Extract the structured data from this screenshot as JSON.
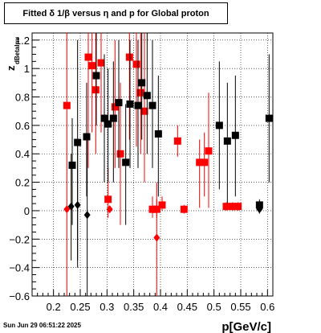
{
  "chart_data": {
    "type": "scatter",
    "title": "Fitted δ 1/β versus η and p for Global proton",
    "xlabel": "p[GeV/c]",
    "ylabel": "z",
    "ylabel_sub": "dBetaInv",
    "xlim": [
      0.16,
      0.61
    ],
    "ylim": [
      -0.6,
      1.25
    ],
    "xticks": [
      0.2,
      0.25,
      0.3,
      0.35,
      0.4,
      0.45,
      0.5,
      0.55,
      0.6
    ],
    "xtick_labels": [
      "0.2",
      "0.25",
      "0.3",
      "0.35",
      "0.4",
      "0.45",
      "0.5",
      "0.55",
      "0.6"
    ],
    "yticks": [
      -0.6,
      -0.4,
      -0.2,
      0,
      0.2,
      0.4,
      0.6,
      0.8,
      1,
      1.2
    ],
    "ytick_labels": [
      "−0.6",
      "−0.4",
      "−0.2",
      "0",
      "0.2",
      "0.4",
      "0.6",
      "0.8",
      "1",
      "1.2"
    ],
    "grid": true,
    "series": [
      {
        "color": "#ff0000",
        "marker": "square",
        "points": [
          {
            "x": 0.225,
            "y": 0.74,
            "lo": -0.6,
            "hi": 1.25
          },
          {
            "x": 0.265,
            "y": 1.08,
            "lo": 0.3,
            "hi": 1.25
          },
          {
            "x": 0.272,
            "y": 1.02,
            "lo": 0.55,
            "hi": 1.25
          },
          {
            "x": 0.279,
            "y": 0.85,
            "lo": 0.4,
            "hi": 1.25
          },
          {
            "x": 0.289,
            "y": 1.04,
            "lo": 0.55,
            "hi": 1.25
          },
          {
            "x": 0.302,
            "y": 0.08,
            "lo": -0.05,
            "hi": 0.3
          },
          {
            "x": 0.315,
            "y": 0.73,
            "lo": 0.3,
            "hi": 1.2
          },
          {
            "x": 0.325,
            "y": 0.4,
            "lo": -0.1,
            "hi": 0.9
          },
          {
            "x": 0.342,
            "y": 1.08,
            "lo": 0.5,
            "hi": 1.25
          },
          {
            "x": 0.355,
            "y": 1.03,
            "lo": 0.45,
            "hi": 1.25
          },
          {
            "x": 0.363,
            "y": 0.83,
            "lo": 0.4,
            "hi": 1.25
          },
          {
            "x": 0.37,
            "y": 0.7,
            "lo": 0.2,
            "hi": 1.25
          },
          {
            "x": 0.385,
            "y": 0.01,
            "lo": -0.05,
            "hi": 0.1
          },
          {
            "x": 0.393,
            "y": 0.01,
            "lo": -0.05,
            "hi": 0.08
          },
          {
            "x": 0.403,
            "y": 0.04,
            "lo": 0.0,
            "hi": 0.1
          },
          {
            "x": 0.432,
            "y": 0.49,
            "lo": 0.38,
            "hi": 0.6
          },
          {
            "x": 0.444,
            "y": 0.01,
            "lo": -0.02,
            "hi": 0.04
          },
          {
            "x": 0.473,
            "y": 0.34,
            "lo": 0.02,
            "hi": 0.5
          },
          {
            "x": 0.482,
            "y": 0.34,
            "lo": 0.1,
            "hi": 0.55
          },
          {
            "x": 0.49,
            "y": 0.42,
            "lo": 0.02,
            "hi": 0.83
          },
          {
            "x": 0.523,
            "y": 0.03,
            "lo": 0.0,
            "hi": 0.06
          },
          {
            "x": 0.535,
            "y": 0.03,
            "lo": 0.0,
            "hi": 0.06
          },
          {
            "x": 0.545,
            "y": 0.03,
            "lo": 0.0,
            "hi": 0.06
          }
        ]
      },
      {
        "color": "#ff0000",
        "marker": "diamond",
        "points": [
          {
            "x": 0.225,
            "y": 0.01
          },
          {
            "x": 0.305,
            "y": 0.01
          },
          {
            "x": 0.393,
            "y": -0.19,
            "lo": -0.6,
            "hi": 0.2
          }
        ]
      },
      {
        "color": "#000000",
        "marker": "square",
        "points": [
          {
            "x": 0.235,
            "y": 0.32,
            "lo": -0.1,
            "hi": 0.65
          },
          {
            "x": 0.245,
            "y": 0.48,
            "lo": -0.35,
            "hi": 1.2
          },
          {
            "x": 0.262,
            "y": 0.52,
            "lo": 0.1,
            "hi": 0.9
          },
          {
            "x": 0.28,
            "y": 0.95,
            "lo": 0.6,
            "hi": 1.25
          },
          {
            "x": 0.295,
            "y": 0.65,
            "lo": 0.2,
            "hi": 1.1
          },
          {
            "x": 0.302,
            "y": 0.61,
            "lo": 0.2,
            "hi": 1.0
          },
          {
            "x": 0.312,
            "y": 0.65,
            "lo": 0.2,
            "hi": 1.05
          },
          {
            "x": 0.322,
            "y": 0.76,
            "lo": 0.3,
            "hi": 1.2
          },
          {
            "x": 0.335,
            "y": 0.34,
            "lo": -0.1,
            "hi": 0.75
          },
          {
            "x": 0.343,
            "y": 0.75,
            "lo": 0.3,
            "hi": 1.2
          },
          {
            "x": 0.358,
            "y": 0.74,
            "lo": 0.3,
            "hi": 1.2
          },
          {
            "x": 0.365,
            "y": 0.9,
            "lo": 0.5,
            "hi": 1.25
          },
          {
            "x": 0.375,
            "y": 0.81,
            "lo": 0.4,
            "hi": 1.25
          },
          {
            "x": 0.385,
            "y": 0.74,
            "lo": 0.3,
            "hi": 1.2
          },
          {
            "x": 0.396,
            "y": 0.54,
            "lo": 0.1,
            "hi": 0.95
          },
          {
            "x": 0.51,
            "y": 0.6,
            "lo": 0.15,
            "hi": 1.05
          },
          {
            "x": 0.525,
            "y": 0.49,
            "lo": 0.05,
            "hi": 0.9
          },
          {
            "x": 0.54,
            "y": 0.53,
            "lo": 0.1,
            "hi": 0.95
          },
          {
            "x": 0.585,
            "y": 0.04,
            "lo": -0.02,
            "hi": 0.08
          },
          {
            "x": 0.603,
            "y": 0.65,
            "lo": 0.2,
            "hi": 1.1
          }
        ]
      },
      {
        "color": "#000000",
        "marker": "diamond",
        "points": [
          {
            "x": 0.233,
            "y": 0.03,
            "lo": -0.35,
            "hi": 0.4
          },
          {
            "x": 0.245,
            "y": 0.04,
            "lo": -0.4,
            "hi": 0.5
          },
          {
            "x": 0.263,
            "y": -0.03,
            "lo": -0.6,
            "hi": 0.5
          },
          {
            "x": 0.585,
            "y": 0.01
          }
        ]
      }
    ],
    "colors": {
      "red": "#ff0000",
      "black": "#000000"
    }
  },
  "datestamp": "Sun Jun 29 06:51:22 2025"
}
